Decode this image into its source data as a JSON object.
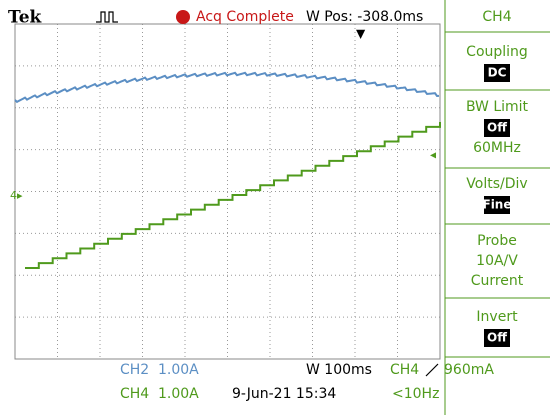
{
  "header": {
    "brand": "Tek",
    "status": "Acq Complete",
    "position": "W Pos: -308.0ms",
    "channel": "CH4"
  },
  "menu": [
    {
      "label": "Coupling",
      "box": "DC"
    },
    {
      "label": "BW Limit",
      "box": "Off",
      "note": "60MHz"
    },
    {
      "label": "Volts/Div",
      "box": "Fine"
    },
    {
      "label": "Probe",
      "lines": [
        "10A/V",
        "Current"
      ]
    },
    {
      "label": "Invert",
      "box": "Off"
    }
  ],
  "footer": {
    "ch2": {
      "name": "CH2",
      "scale": "1.00A"
    },
    "ch4": {
      "name": "CH4",
      "scale": "1.00A"
    },
    "timebase": "W 100ms",
    "trigger": {
      "source": "CH4",
      "level": "960mA"
    },
    "date": "9-Jun-21 15:34",
    "frequency": "<10Hz"
  }
}
